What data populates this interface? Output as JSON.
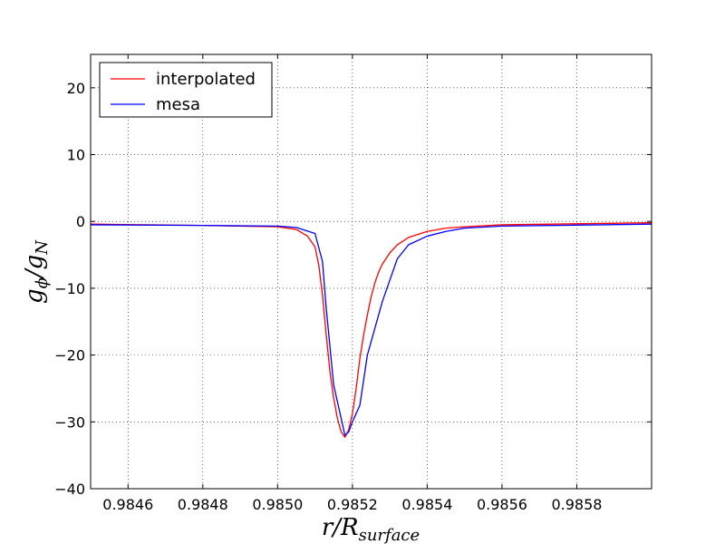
{
  "chart_data": {
    "type": "line",
    "xlabel": "r/R_surface",
    "ylabel": "g_φ/g_N",
    "xlim": [
      0.9845,
      0.986
    ],
    "ylim": [
      -40,
      25
    ],
    "x_ticks": [
      0.9846,
      0.9848,
      0.985,
      0.9852,
      0.9854,
      0.9856,
      0.9858
    ],
    "x_tick_labels": [
      "0.9846",
      "0.9848",
      "0.9850",
      "0.9852",
      "0.9854",
      "0.9856",
      "0.9858"
    ],
    "y_ticks": [
      -40,
      -30,
      -20,
      -10,
      0,
      10,
      20
    ],
    "y_tick_labels": [
      "−40",
      "−30",
      "−20",
      "−10",
      "0",
      "10",
      "20"
    ],
    "grid": true,
    "legend_position": "top-left",
    "series": [
      {
        "name": "interpolated",
        "color": "#ff0000",
        "x": [
          0.9845,
          0.9848,
          0.985,
          0.98505,
          0.98508,
          0.9851,
          0.98511,
          0.98512,
          0.98513,
          0.98514,
          0.98515,
          0.98516,
          0.98517,
          0.98518,
          0.98519,
          0.9852,
          0.98521,
          0.98522,
          0.98523,
          0.98524,
          0.98525,
          0.98526,
          0.98527,
          0.98528,
          0.9853,
          0.98532,
          0.98535,
          0.9854,
          0.98545,
          0.9855,
          0.9856,
          0.986
        ],
        "y": [
          -0.4,
          -0.6,
          -0.8,
          -1.2,
          -2.2,
          -3.8,
          -6.5,
          -11.0,
          -17.0,
          -22.5,
          -26.5,
          -29.5,
          -31.5,
          -32.3,
          -31.2,
          -28.8,
          -25.0,
          -20.5,
          -17.0,
          -14.0,
          -11.3,
          -9.2,
          -7.6,
          -6.4,
          -4.7,
          -3.5,
          -2.4,
          -1.5,
          -1.0,
          -0.8,
          -0.5,
          -0.2
        ]
      },
      {
        "name": "mesa",
        "color": "#0000ff",
        "x": [
          0.9845,
          0.9848,
          0.985,
          0.98505,
          0.9851,
          0.98512,
          0.98513,
          0.98515,
          0.98517,
          0.98518,
          0.98519,
          0.9852,
          0.98522,
          0.98524,
          0.98526,
          0.98528,
          0.9853,
          0.98532,
          0.98535,
          0.9854,
          0.98545,
          0.9855,
          0.9856,
          0.986
        ],
        "y": [
          -0.5,
          -0.6,
          -0.7,
          -0.9,
          -1.8,
          -6.0,
          -13.0,
          -24.5,
          -29.5,
          -32.0,
          -31.5,
          -30.0,
          -27.5,
          -20.0,
          -16.0,
          -12.0,
          -8.8,
          -5.6,
          -3.5,
          -2.2,
          -1.5,
          -1.0,
          -0.7,
          -0.4
        ]
      }
    ]
  }
}
